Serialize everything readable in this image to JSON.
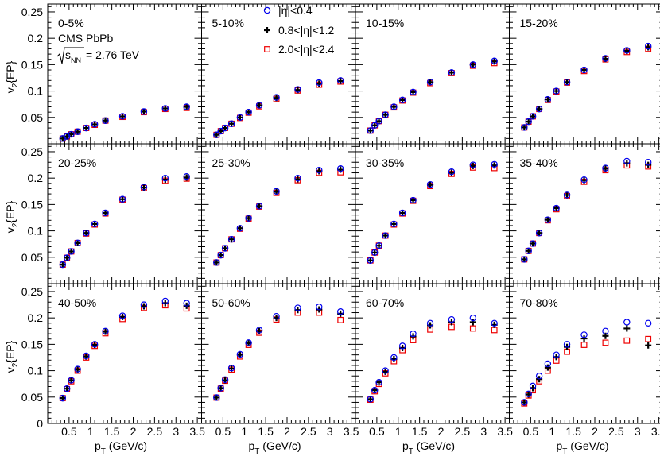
{
  "chart_data": {
    "type": "scatter",
    "panel_grid": "3 rows x 4 columns, shared axes",
    "ylabel": "v2{EP}",
    "xlabel": "pT (GeV/c)",
    "xlim": [
      0,
      3.6
    ],
    "ylim": [
      0,
      0.265
    ],
    "x_ticks": [
      0.5,
      1,
      1.5,
      2,
      2.5,
      3,
      3.5
    ],
    "x_tick_labels": [
      "0.5",
      "1",
      "1.5",
      "2",
      "2.5",
      "3",
      "3.5"
    ],
    "y_ticks": [
      0.05,
      0.1,
      0.15,
      0.2,
      0.25
    ],
    "y_tick_labels": [
      "0.05",
      "0.1",
      "0.15",
      "0.2",
      "0.25"
    ],
    "y_zero_label": "0",
    "annotations": {
      "experiment": "CMS PbPb",
      "energy_symbol": "sNN",
      "energy_sub": "NN",
      "energy_value": "= 2.76 TeV"
    },
    "legend": [
      {
        "label": "|η|<0.4",
        "marker": "circle",
        "color": "#0000ee"
      },
      {
        "label": "0.8<|η|<1.2",
        "marker": "cross",
        "color": "#000000"
      },
      {
        "label": "2.0<|η|<2.4",
        "marker": "square",
        "color": "#ee0000"
      }
    ],
    "x_values": [
      0.35,
      0.45,
      0.55,
      0.7,
      0.9,
      1.1,
      1.35,
      1.75,
      2.25,
      2.75,
      3.25
    ],
    "panels": [
      {
        "centrality": "0-5%",
        "series": [
          [
            0.01,
            0.014,
            0.018,
            0.023,
            0.03,
            0.037,
            0.044,
            0.052,
            0.061,
            0.067,
            0.07
          ],
          [
            0.01,
            0.014,
            0.018,
            0.023,
            0.03,
            0.037,
            0.044,
            0.052,
            0.061,
            0.067,
            0.07
          ],
          [
            0.01,
            0.014,
            0.018,
            0.023,
            0.03,
            0.036,
            0.044,
            0.051,
            0.06,
            0.066,
            0.068
          ]
        ]
      },
      {
        "centrality": "5-10%",
        "series": [
          [
            0.017,
            0.024,
            0.03,
            0.038,
            0.05,
            0.06,
            0.073,
            0.088,
            0.103,
            0.116,
            0.12
          ],
          [
            0.017,
            0.024,
            0.03,
            0.038,
            0.05,
            0.06,
            0.073,
            0.087,
            0.102,
            0.114,
            0.119
          ],
          [
            0.017,
            0.024,
            0.03,
            0.038,
            0.049,
            0.059,
            0.071,
            0.085,
            0.101,
            0.112,
            0.118
          ]
        ]
      },
      {
        "centrality": "10-15%",
        "series": [
          [
            0.025,
            0.035,
            0.043,
            0.055,
            0.07,
            0.083,
            0.098,
            0.117,
            0.135,
            0.15,
            0.157
          ],
          [
            0.025,
            0.035,
            0.043,
            0.055,
            0.07,
            0.083,
            0.098,
            0.117,
            0.135,
            0.15,
            0.156
          ],
          [
            0.025,
            0.035,
            0.043,
            0.055,
            0.069,
            0.082,
            0.097,
            0.115,
            0.134,
            0.148,
            0.153
          ]
        ]
      },
      {
        "centrality": "15-20%",
        "series": [
          [
            0.031,
            0.042,
            0.052,
            0.066,
            0.084,
            0.1,
            0.117,
            0.14,
            0.162,
            0.177,
            0.185
          ],
          [
            0.031,
            0.042,
            0.052,
            0.066,
            0.084,
            0.1,
            0.117,
            0.14,
            0.161,
            0.176,
            0.183
          ],
          [
            0.031,
            0.042,
            0.052,
            0.066,
            0.083,
            0.099,
            0.116,
            0.138,
            0.16,
            0.174,
            0.18
          ]
        ]
      },
      {
        "centrality": "20-25%",
        "series": [
          [
            0.036,
            0.049,
            0.061,
            0.077,
            0.096,
            0.113,
            0.134,
            0.16,
            0.183,
            0.2,
            0.203
          ],
          [
            0.036,
            0.049,
            0.061,
            0.077,
            0.096,
            0.113,
            0.134,
            0.16,
            0.182,
            0.197,
            0.201
          ],
          [
            0.036,
            0.049,
            0.061,
            0.077,
            0.095,
            0.112,
            0.133,
            0.159,
            0.181,
            0.195,
            0.199
          ]
        ]
      },
      {
        "centrality": "25-30%",
        "series": [
          [
            0.04,
            0.054,
            0.067,
            0.084,
            0.105,
            0.124,
            0.147,
            0.175,
            0.2,
            0.215,
            0.218
          ],
          [
            0.04,
            0.054,
            0.067,
            0.084,
            0.105,
            0.124,
            0.147,
            0.174,
            0.198,
            0.213,
            0.216
          ],
          [
            0.04,
            0.054,
            0.067,
            0.084,
            0.104,
            0.123,
            0.146,
            0.172,
            0.196,
            0.21,
            0.211
          ]
        ]
      },
      {
        "centrality": "30-35%",
        "series": [
          [
            0.044,
            0.059,
            0.072,
            0.091,
            0.113,
            0.134,
            0.158,
            0.188,
            0.212,
            0.225,
            0.226
          ],
          [
            0.044,
            0.059,
            0.072,
            0.091,
            0.113,
            0.134,
            0.158,
            0.187,
            0.21,
            0.223,
            0.224
          ],
          [
            0.044,
            0.059,
            0.072,
            0.091,
            0.112,
            0.133,
            0.157,
            0.185,
            0.208,
            0.22,
            0.219
          ]
        ]
      },
      {
        "centrality": "35-40%",
        "series": [
          [
            0.046,
            0.062,
            0.076,
            0.096,
            0.121,
            0.143,
            0.168,
            0.197,
            0.219,
            0.232,
            0.23
          ],
          [
            0.046,
            0.062,
            0.076,
            0.096,
            0.121,
            0.143,
            0.168,
            0.196,
            0.218,
            0.228,
            0.225
          ],
          [
            0.046,
            0.062,
            0.076,
            0.096,
            0.12,
            0.141,
            0.166,
            0.193,
            0.215,
            0.224,
            0.222
          ]
        ]
      },
      {
        "centrality": "40-50%",
        "series": [
          [
            0.048,
            0.066,
            0.082,
            0.103,
            0.128,
            0.15,
            0.175,
            0.204,
            0.225,
            0.232,
            0.228
          ],
          [
            0.048,
            0.066,
            0.082,
            0.102,
            0.127,
            0.149,
            0.174,
            0.202,
            0.222,
            0.228,
            0.223
          ],
          [
            0.048,
            0.065,
            0.08,
            0.1,
            0.125,
            0.147,
            0.171,
            0.198,
            0.219,
            0.224,
            0.218
          ]
        ]
      },
      {
        "centrality": "50-60%",
        "series": [
          [
            0.049,
            0.067,
            0.083,
            0.105,
            0.131,
            0.153,
            0.177,
            0.203,
            0.219,
            0.221,
            0.212
          ],
          [
            0.049,
            0.067,
            0.082,
            0.104,
            0.13,
            0.152,
            0.175,
            0.2,
            0.215,
            0.216,
            0.208
          ],
          [
            0.049,
            0.066,
            0.081,
            0.102,
            0.127,
            0.149,
            0.172,
            0.197,
            0.21,
            0.21,
            0.196
          ]
        ]
      },
      {
        "centrality": "60-70%",
        "series": [
          [
            0.046,
            0.063,
            0.078,
            0.1,
            0.125,
            0.147,
            0.17,
            0.19,
            0.197,
            0.2,
            0.19
          ],
          [
            0.046,
            0.063,
            0.078,
            0.098,
            0.122,
            0.143,
            0.165,
            0.186,
            0.192,
            0.192,
            0.187
          ],
          [
            0.045,
            0.061,
            0.075,
            0.095,
            0.118,
            0.139,
            0.158,
            0.178,
            0.183,
            0.18,
            0.177
          ]
        ]
      },
      {
        "centrality": "70-80%",
        "series": [
          [
            0.04,
            0.056,
            0.071,
            0.09,
            0.113,
            0.13,
            0.15,
            0.168,
            0.175,
            0.192,
            0.19
          ],
          [
            0.04,
            0.055,
            0.067,
            0.084,
            0.106,
            0.126,
            0.145,
            0.161,
            0.166,
            0.18,
            0.148
          ],
          [
            0.038,
            0.053,
            0.063,
            0.08,
            0.1,
            0.119,
            0.136,
            0.149,
            0.153,
            0.157,
            0.16
          ]
        ]
      }
    ]
  }
}
